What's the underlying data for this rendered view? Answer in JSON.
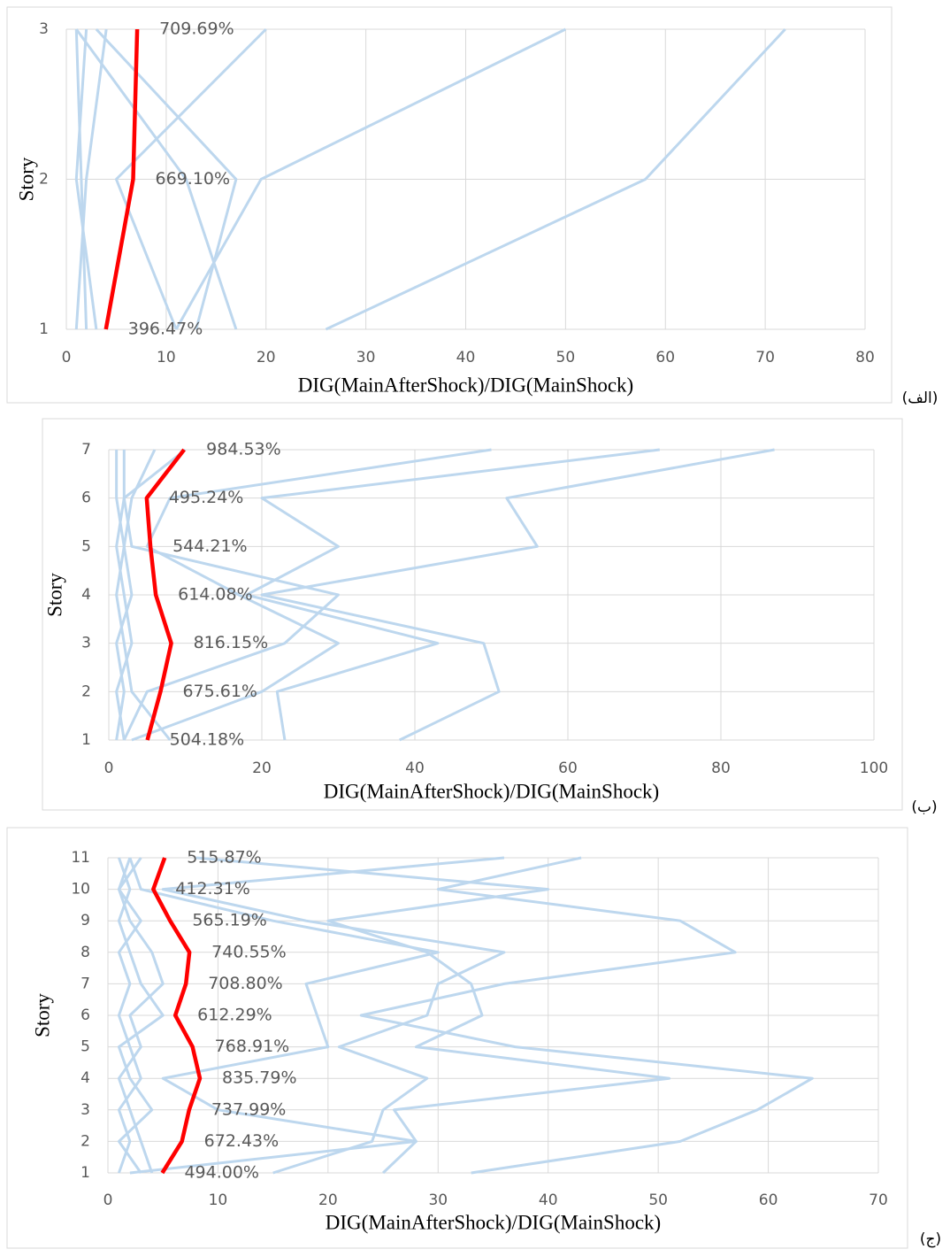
{
  "chart_data": [
    {
      "type": "line",
      "panel_label": "(الف)",
      "x_label": "DIG(MainAfterShock)/DIG(MainShock)",
      "y_label": "Story",
      "categories": [
        1,
        2,
        3
      ],
      "xlim": [
        0,
        80
      ],
      "xticks": [
        0,
        10,
        20,
        30,
        40,
        50,
        60,
        70,
        80
      ],
      "grid": true,
      "series": [
        {
          "color": "#bdd7ee",
          "values": [
            26,
            58,
            72
          ]
        },
        {
          "color": "#bdd7ee",
          "values": [
            11,
            19.5,
            50
          ]
        },
        {
          "color": "#bdd7ee",
          "values": [
            13,
            17,
            3
          ]
        },
        {
          "color": "#bdd7ee",
          "values": [
            11,
            5,
            20
          ]
        },
        {
          "color": "#bdd7ee",
          "values": [
            2,
            1.5,
            1
          ]
        },
        {
          "color": "#bdd7ee",
          "values": [
            1,
            2,
            4
          ]
        },
        {
          "color": "#bdd7ee",
          "values": [
            3,
            1,
            2
          ]
        },
        {
          "color": "#bdd7ee",
          "values": [
            17,
            12,
            1
          ]
        },
        {
          "color": "#ff0000",
          "values": [
            3.9647,
            6.691,
            7.0969
          ],
          "value_labels": [
            "396.47%",
            "669.10%",
            "709.69%"
          ]
        }
      ]
    },
    {
      "type": "line",
      "panel_label": "(ب)",
      "x_label": "DIG(MainAfterShock)/DIG(MainShock)",
      "y_label": "Story",
      "categories": [
        1,
        2,
        3,
        4,
        5,
        6,
        7
      ],
      "xlim": [
        0,
        100
      ],
      "xticks": [
        0,
        20,
        40,
        60,
        80,
        100
      ],
      "grid": true,
      "series": [
        {
          "color": "#bdd7ee",
          "values": [
            38,
            51,
            49,
            20,
            56,
            52,
            87
          ]
        },
        {
          "color": "#bdd7ee",
          "values": [
            23,
            22,
            43,
            18,
            30,
            20,
            72
          ]
        },
        {
          "color": "#bdd7ee",
          "values": [
            3,
            20,
            30,
            17,
            5,
            8,
            50
          ]
        },
        {
          "color": "#bdd7ee",
          "values": [
            2,
            5,
            23,
            30,
            3,
            2,
            10
          ]
        },
        {
          "color": "#bdd7ee",
          "values": [
            1,
            2,
            1,
            3,
            2,
            1,
            1
          ]
        },
        {
          "color": "#bdd7ee",
          "values": [
            8,
            3,
            2,
            1,
            2,
            3,
            6
          ]
        },
        {
          "color": "#bdd7ee",
          "values": [
            2,
            1,
            3,
            2,
            1,
            2,
            2
          ]
        },
        {
          "color": "#ff0000",
          "values": [
            5.0418,
            6.7561,
            8.1615,
            6.1408,
            5.4421,
            4.9524,
            9.8453
          ],
          "value_labels": [
            "504.18%",
            "675.61%",
            "816.15%",
            "614.08%",
            "544.21%",
            "495.24%",
            "984.53%"
          ]
        }
      ]
    },
    {
      "type": "line",
      "panel_label": "(ج)",
      "x_label": "DIG(MainAfterShock)/DIG(MainShock)",
      "y_label": "Story",
      "categories": [
        1,
        2,
        3,
        4,
        5,
        6,
        7,
        8,
        9,
        10,
        11
      ],
      "xlim": [
        0,
        70
      ],
      "xticks": [
        0,
        10,
        20,
        30,
        40,
        50,
        60,
        70
      ],
      "grid": true,
      "series": [
        {
          "color": "#bdd7ee",
          "values": [
            33,
            52,
            59,
            64,
            37,
            23,
            36,
            57,
            52,
            30,
            43
          ]
        },
        {
          "color": "#bdd7ee",
          "values": [
            25,
            28,
            26,
            51,
            28,
            34,
            33,
            29,
            20,
            40,
            8
          ]
        },
        {
          "color": "#bdd7ee",
          "values": [
            15,
            24,
            25,
            29,
            21,
            29,
            30,
            36,
            18,
            5,
            36
          ]
        },
        {
          "color": "#bdd7ee",
          "values": [
            2,
            28,
            10,
            5,
            20,
            19,
            18,
            30,
            15,
            3,
            2
          ]
        },
        {
          "color": "#bdd7ee",
          "values": [
            3,
            1,
            4,
            2,
            1,
            5,
            3,
            2,
            1,
            2,
            1
          ]
        },
        {
          "color": "#bdd7ee",
          "values": [
            1,
            2,
            1,
            3,
            2,
            1,
            2,
            1,
            3,
            1,
            2
          ]
        },
        {
          "color": "#bdd7ee",
          "values": [
            4,
            3,
            2,
            1,
            3,
            2,
            5,
            4,
            2,
            1,
            3
          ]
        },
        {
          "color": "#ff0000",
          "values": [
            4.94,
            6.7243,
            7.3799,
            8.3579,
            7.6891,
            6.1229,
            7.088,
            7.4055,
            5.6519,
            4.1231,
            5.1587
          ],
          "value_labels": [
            "494.00%",
            "672.43%",
            "737.99%",
            "835.79%",
            "768.91%",
            "612.29%",
            "708.80%",
            "740.55%",
            "565.19%",
            "412.31%",
            "515.87%"
          ]
        }
      ]
    }
  ]
}
